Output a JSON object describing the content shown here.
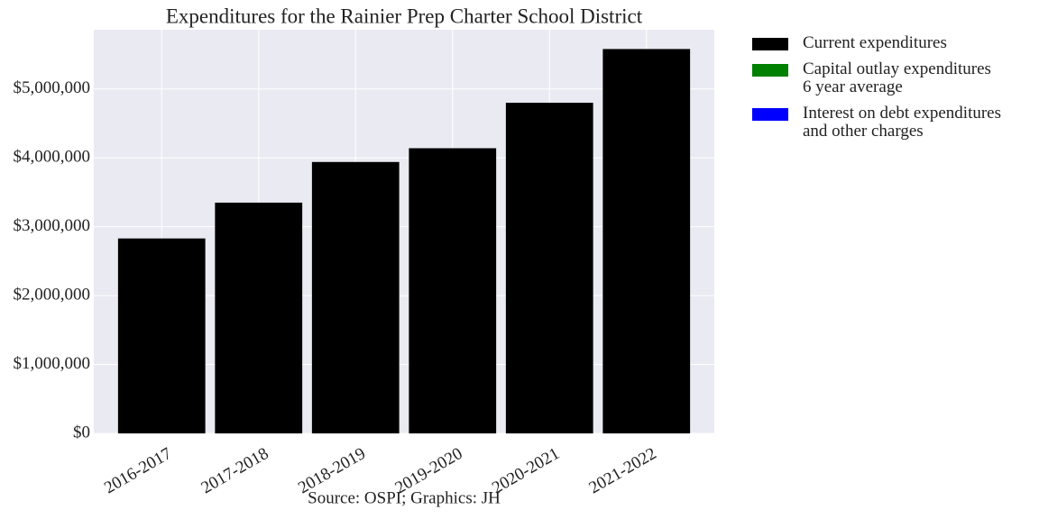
{
  "chart_data": {
    "type": "stacked_bar",
    "title": "Expenditures for the Rainier Prep Charter School District",
    "caption": "Source: OSPI; Graphics: JH",
    "categories": [
      "2016-2017",
      "2017-2018",
      "2018-2019",
      "2019-2020",
      "2020-2021",
      "2021-2022"
    ],
    "series": [
      {
        "name": "Current expenditures",
        "color": "#000000",
        "values": [
          2830000,
          3350000,
          3940000,
          4140000,
          4800000,
          5580000
        ]
      },
      {
        "name": "Capital outlay expenditures\n6 year average",
        "color": "#008000",
        "values": [
          0,
          0,
          0,
          0,
          0,
          0
        ]
      },
      {
        "name": "Interest on debt expenditures\nand other charges",
        "color": "#0000ff",
        "values": [
          0,
          0,
          0,
          0,
          0,
          0
        ]
      }
    ],
    "ylim": [
      0,
      5860000
    ],
    "yticks": [
      {
        "value": 0,
        "label": "$0"
      },
      {
        "value": 1000000,
        "label": "$1,000,000"
      },
      {
        "value": 2000000,
        "label": "$2,000,000"
      },
      {
        "value": 3000000,
        "label": "$3,000,000"
      },
      {
        "value": 4000000,
        "label": "$4,000,000"
      },
      {
        "value": 5000000,
        "label": "$5,000,000"
      }
    ],
    "grid": true,
    "legend": "outside right"
  }
}
